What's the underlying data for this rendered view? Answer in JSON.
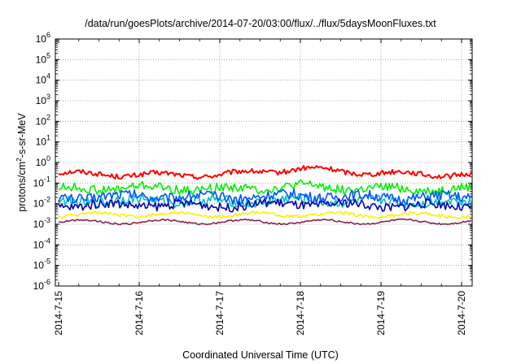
{
  "chart_data": {
    "type": "line",
    "title": "/data/run/goesPlots/archive/2014-07-20/03:00/flux/../flux/5daysMoonFluxes.txt",
    "xlabel": "Coordinated Universal Time (UTC)",
    "ylabel": {
      "prefix": "protons/cm",
      "sup": "2",
      "suffix": "-s-sr-MeV"
    },
    "x_range": [
      "2014-07-15 00:00",
      "2014-07-20 03:00"
    ],
    "x_ticks": [
      "2014-7-15",
      "2014-7-16",
      "2014-7-17",
      "2014-7-18",
      "2014-7-19",
      "2014-7-20"
    ],
    "y_scale": "log",
    "ylim": [
      1e-06,
      1000000.0
    ],
    "y_tick_exponents": [
      -6,
      -5,
      -4,
      -3,
      -2,
      -1,
      0,
      1,
      2,
      3,
      4,
      5,
      6
    ],
    "y_tick_base": "10",
    "grid": true,
    "legend": "none",
    "series": [
      {
        "color": "#ff0000",
        "level": 0.3,
        "values_at_day_ticks": [
          0.3,
          0.25,
          0.25,
          0.5,
          0.3,
          0.25
        ]
      },
      {
        "color": "#00ee00",
        "level": 0.05,
        "values_at_day_ticks": [
          0.05,
          0.06,
          0.05,
          0.07,
          0.05,
          0.05
        ]
      },
      {
        "color": "#00c0c0",
        "level": 0.012,
        "values_at_day_ticks": [
          0.012,
          0.015,
          0.012,
          0.015,
          0.012,
          0.012
        ]
      },
      {
        "color": "#0055ff",
        "level": 0.02,
        "values_at_day_ticks": [
          0.02,
          0.025,
          0.02,
          0.025,
          0.02,
          0.02
        ]
      },
      {
        "color": "#0000b0",
        "level": 0.008,
        "values_at_day_ticks": [
          0.008,
          0.009,
          0.008,
          0.01,
          0.008,
          0.008
        ]
      },
      {
        "color": "#ffee00",
        "level": 0.0028,
        "values_at_day_ticks": [
          0.0028,
          0.003,
          0.0028,
          0.003,
          0.0028,
          0.0028
        ]
      },
      {
        "color": "#8b2252",
        "level": 0.0013,
        "values_at_day_ticks": [
          0.0013,
          0.0013,
          0.0013,
          0.0013,
          0.0013,
          0.0013
        ]
      }
    ]
  }
}
